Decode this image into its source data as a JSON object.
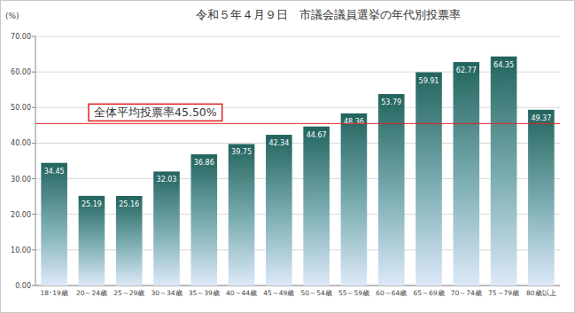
{
  "chart_data": {
    "type": "bar",
    "title": "令和５年４月９日　市議会議員選挙の年代別投票率",
    "y_label": "(%)",
    "categories": [
      "18･19歳",
      "20～24歳",
      "25～29歳",
      "30～34歳",
      "35～39歳",
      "40～44歳",
      "45～49歳",
      "50～54歳",
      "55～59歳",
      "60～64歳",
      "65～69歳",
      "70～74歳",
      "75～79歳",
      "80歳以上"
    ],
    "values": [
      34.45,
      25.19,
      25.16,
      32.03,
      36.86,
      39.75,
      42.34,
      44.67,
      48.36,
      53.79,
      59.91,
      62.77,
      64.35,
      49.37
    ],
    "color": "#22645e",
    "ylim": [
      0,
      70
    ],
    "yticks": [
      {
        "value": 0,
        "label": "0.00"
      },
      {
        "value": 10,
        "label": "10.00"
      },
      {
        "value": 20,
        "label": "20.00"
      },
      {
        "value": 30,
        "label": "30.00"
      },
      {
        "value": 40,
        "label": "40.00"
      },
      {
        "value": 50,
        "label": "50.00"
      },
      {
        "value": 60,
        "label": "60.00"
      },
      {
        "value": 70,
        "label": "70.00"
      }
    ],
    "grid": true,
    "data_labels": true,
    "annotations": [
      {
        "text": "全体平均投票率45.50%",
        "value": 45.5,
        "color": "#e02020"
      }
    ]
  }
}
